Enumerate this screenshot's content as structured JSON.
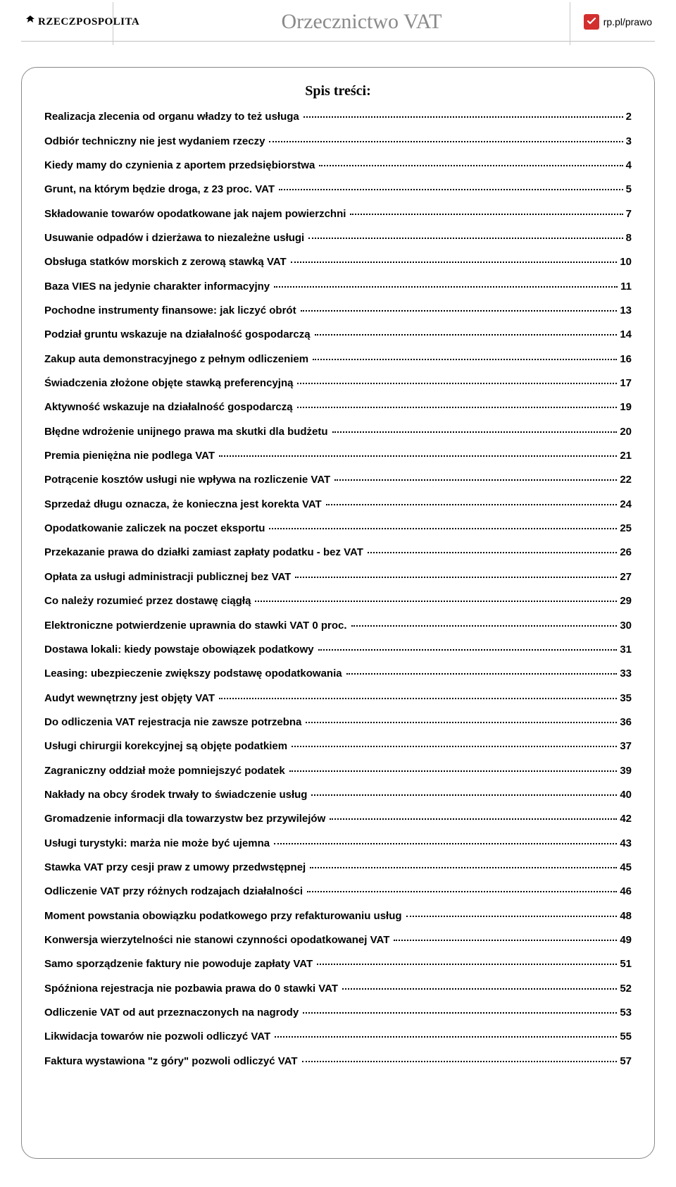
{
  "header": {
    "brand": "RZECZPOSPOLITA",
    "title": "Orzecznictwo VAT",
    "site": "rp.pl/prawo"
  },
  "toc": {
    "heading": "Spis treści:",
    "entries": [
      {
        "title": "Realizacja zlecenia od organu władzy to też usługa",
        "page": "2"
      },
      {
        "title": "Odbiór techniczny nie jest wydaniem rzeczy",
        "page": "3"
      },
      {
        "title": "Kiedy mamy do czynienia z aportem przedsiębiorstwa",
        "page": "4"
      },
      {
        "title": "Grunt, na którym będzie droga, z 23 proc. VAT",
        "page": " 5"
      },
      {
        "title": "Składowanie towarów opodatkowane jak najem powierzchni",
        "page": "7"
      },
      {
        "title": "Usuwanie odpadów i dzierżawa to niezależne usługi",
        "page": "8"
      },
      {
        "title": "Obsługa statków morskich z zerową stawką VAT",
        "page": "10"
      },
      {
        "title": "Baza VIES na jedynie charakter informacyjny",
        "page": " 11"
      },
      {
        "title": "Pochodne instrumenty finansowe: jak liczyć obrót",
        "page": " 13"
      },
      {
        "title": "Podział gruntu wskazuje na działalność gospodarczą",
        "page": "14"
      },
      {
        "title": "Zakup auta demonstracyjnego z pełnym odliczeniem",
        "page": "16"
      },
      {
        "title": "Świadczenia złożone objęte stawką preferencyjną",
        "page": "17"
      },
      {
        "title": "Aktywność wskazuje na działalność gospodarczą",
        "page": "19"
      },
      {
        "title": "Błędne wdrożenie unijnego prawa ma skutki dla budżetu",
        "page": "20"
      },
      {
        "title": "Premia pieniężna nie podlega VAT",
        "page": "21"
      },
      {
        "title": "Potrącenie kosztów usługi nie wpływa na rozliczenie VAT",
        "page": "22"
      },
      {
        "title": "Sprzedaż długu oznacza, że konieczna jest korekta VAT",
        "page": "24"
      },
      {
        "title": "Opodatkowanie zaliczek na poczet eksportu",
        "page": " 25"
      },
      {
        "title": "Przekazanie prawa do działki zamiast zapłaty podatku - bez VAT",
        "page": "26"
      },
      {
        "title": "Opłata za usługi administracji publicznej bez VAT",
        "page": " 27"
      },
      {
        "title": "Co należy rozumieć przez dostawę ciągłą",
        "page": "29"
      },
      {
        "title": "Elektroniczne potwierdzenie uprawnia do stawki VAT 0 proc.",
        "page": "30"
      },
      {
        "title": "Dostawa lokali: kiedy powstaje obowiązek podatkowy",
        "page": "31"
      },
      {
        "title": "Leasing: ubezpieczenie zwiększy podstawę opodatkowania",
        "page": "33"
      },
      {
        "title": "Audyt wewnętrzny jest objęty VAT",
        "page": "35"
      },
      {
        "title": "Do odliczenia VAT rejestracja nie zawsze potrzebna",
        "page": "36"
      },
      {
        "title": "Usługi chirurgii korekcyjnej są objęte podatkiem",
        "page": "37"
      },
      {
        "title": "Zagraniczny oddział może pomniejszyć podatek",
        "page": " 39"
      },
      {
        "title": "Nakłady na obcy środek trwały to świadczenie usług",
        "page": "40"
      },
      {
        "title": "Gromadzenie informacji dla towarzystw bez przywilejów",
        "page": "42"
      },
      {
        "title": "Usługi turystyki: marża nie może być ujemna",
        "page": " 43"
      },
      {
        "title": "Stawka VAT przy cesji praw z umowy przedwstępnej",
        "page": "45"
      },
      {
        "title": "Odliczenie VAT przy różnych rodzajach działalności",
        "page": "46"
      },
      {
        "title": "Moment powstania obowiązku podatkowego przy refakturowaniu usług",
        "page": "48"
      },
      {
        "title": "Konwersja wierzytelności nie stanowi czynności opodatkowanej VAT",
        "page": "49"
      },
      {
        "title": "Samo sporządzenie faktury nie powoduje zapłaty VAT",
        "page": " 51"
      },
      {
        "title": "Spóźniona rejestracja nie pozbawia prawa do 0 stawki VAT",
        "page": "52"
      },
      {
        "title": "Odliczenie VAT od aut przeznaczonych na nagrody",
        "page": "53"
      },
      {
        "title": "Likwidacja towarów nie pozwoli odliczyć VAT",
        "page": "55"
      },
      {
        "title": "Faktura wystawiona \"z góry\" pozwoli odliczyć VAT",
        "page": "57"
      }
    ]
  }
}
